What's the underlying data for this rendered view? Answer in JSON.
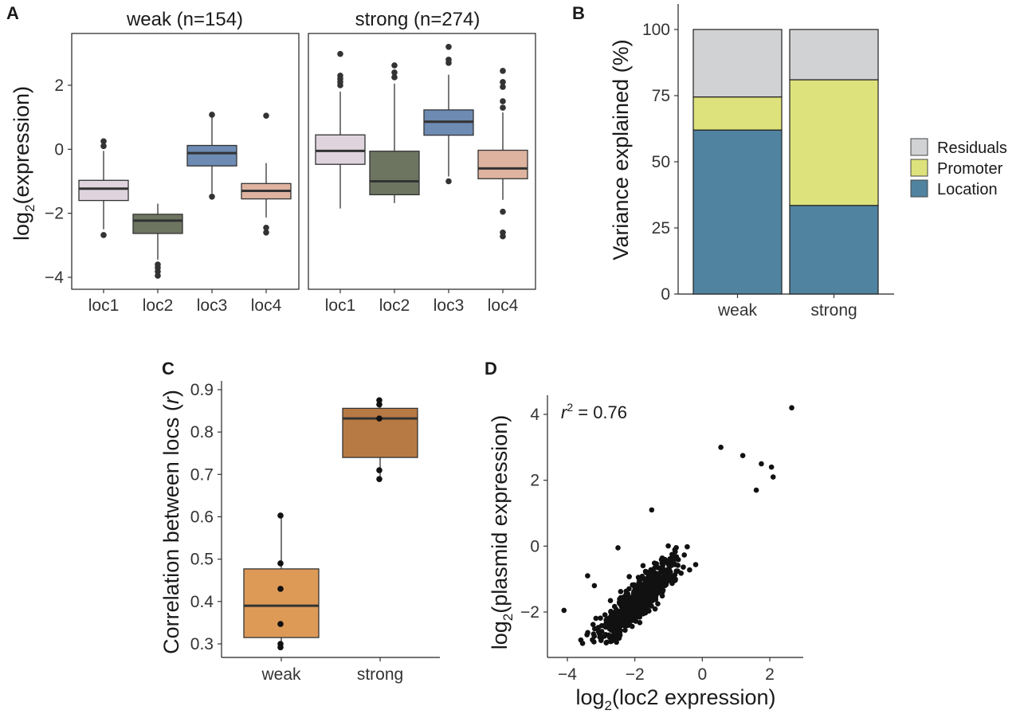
{
  "panels": {
    "A": "A",
    "B": "B",
    "C": "C",
    "D": "D"
  },
  "colors": {
    "loc1": "#dfd4dd",
    "loc2": "#6d7561",
    "loc3": "#6d8bb3",
    "loc4": "#deb3a0",
    "residuals": "#d1d2d3",
    "promoter": "#dde27c",
    "location": "#5083a0",
    "weak_box": "#dd9a57",
    "strong_box": "#b87a45",
    "points": "#111111"
  },
  "chart_data": [
    {
      "id": "A",
      "type": "boxplot",
      "ylabel_main": "log",
      "ylabel_sub": "2",
      "ylabel_tail": "(expression)",
      "ylim": [
        -4.3,
        3.6
      ],
      "yticks": [
        2,
        0,
        -2,
        -4
      ],
      "ytick_labels": [
        "2",
        "0",
        "−2",
        "−4"
      ],
      "facets": [
        {
          "title": "weak (n=154)",
          "categories": [
            "loc1",
            "loc2",
            "loc3",
            "loc4"
          ],
          "boxes": [
            {
              "q1": -1.6,
              "median": -1.23,
              "q3": -0.97,
              "wlow": -2.5,
              "whigh": -0.05,
              "outliers": [
                -2.68,
                0.1,
                0.25
              ]
            },
            {
              "q1": -2.63,
              "median": -2.23,
              "q3": -2.03,
              "wlow": -3.45,
              "whigh": -1.7,
              "outliers": [
                -3.6,
                -3.7,
                -3.82,
                -3.95
              ]
            },
            {
              "q1": -0.52,
              "median": -0.12,
              "q3": 0.12,
              "wlow": -1.38,
              "whigh": 1.05,
              "outliers": [
                -1.48,
                1.08
              ]
            },
            {
              "q1": -1.55,
              "median": -1.3,
              "q3": -1.07,
              "wlow": -2.13,
              "whigh": -0.43,
              "outliers": [
                -2.45,
                -2.6,
                1.05
              ]
            }
          ]
        },
        {
          "title": "strong (n=274)",
          "categories": [
            "loc1",
            "loc2",
            "loc3",
            "loc4"
          ],
          "boxes": [
            {
              "q1": -0.47,
              "median": -0.05,
              "q3": 0.45,
              "wlow": -1.85,
              "whigh": 1.8,
              "outliers": [
                2.0,
                2.1,
                2.2,
                2.3,
                2.98
              ]
            },
            {
              "q1": -1.42,
              "median": -1.0,
              "q3": -0.06,
              "wlow": -1.68,
              "whigh": 2.05,
              "outliers": [
                2.25,
                2.4,
                2.62
              ]
            },
            {
              "q1": 0.44,
              "median": 0.86,
              "q3": 1.23,
              "wlow": -0.85,
              "whigh": 2.33,
              "outliers": [
                -1.0,
                2.7,
                2.8,
                3.2
              ]
            },
            {
              "q1": -0.92,
              "median": -0.6,
              "q3": -0.03,
              "wlow": -1.58,
              "whigh": 1.15,
              "outliers": [
                -1.95,
                -2.6,
                -2.72,
                1.3,
                1.5,
                1.95,
                2.1,
                2.45
              ]
            }
          ]
        }
      ]
    },
    {
      "id": "B",
      "type": "bar",
      "stacked": true,
      "ylabel": "Variance explained (%)",
      "ylim": [
        0,
        110
      ],
      "yticks": [
        0,
        25,
        50,
        75,
        100
      ],
      "categories": [
        "weak",
        "strong"
      ],
      "series": [
        {
          "name": "Location",
          "values": [
            62,
            33.5
          ]
        },
        {
          "name": "Promoter",
          "values": [
            12.5,
            47.5
          ]
        },
        {
          "name": "Residuals",
          "values": [
            25.5,
            19
          ]
        }
      ],
      "legend_order": [
        "Residuals",
        "Promoter",
        "Location"
      ],
      "legend_position": "right"
    },
    {
      "id": "C",
      "type": "boxplot",
      "ylabel_main": "Correlation between locs (",
      "ylabel_italic": "r",
      "ylabel_tail": ")",
      "ylim": [
        0.28,
        0.91
      ],
      "yticks": [
        0.3,
        0.4,
        0.5,
        0.6,
        0.7,
        0.8,
        0.9
      ],
      "ytick_labels": [
        "0.3",
        "0.4",
        "0.5",
        "0.6",
        "0.7",
        "0.8",
        "0.9"
      ],
      "categories": [
        "weak",
        "strong"
      ],
      "boxes": [
        {
          "q1": 0.315,
          "median": 0.39,
          "q3": 0.477,
          "wlow": 0.295,
          "whigh": 0.603,
          "points": [
            0.603,
            0.49,
            0.43,
            0.347,
            0.3,
            0.292
          ]
        },
        {
          "q1": 0.74,
          "median": 0.832,
          "q3": 0.856,
          "wlow": 0.689,
          "whigh": 0.875,
          "points": [
            0.875,
            0.865,
            0.832,
            0.71,
            0.689
          ]
        }
      ]
    },
    {
      "id": "D",
      "type": "scatter",
      "xlabel_main": "log",
      "xlabel_sub": "2",
      "xlabel_tail": "(loc2 expression)",
      "ylabel_main": "log",
      "ylabel_sub": "2",
      "ylabel_tail": "(plasmid expression)",
      "xlim": [
        -4.4,
        3.0
      ],
      "ylim": [
        -3.05,
        4.45
      ],
      "xticks": [
        -4,
        -2,
        0,
        2
      ],
      "xtick_labels": [
        "−4",
        "−2",
        "0",
        "2"
      ],
      "yticks": [
        4,
        2,
        0,
        -2
      ],
      "ytick_labels": [
        "4",
        "2",
        "0",
        "−2"
      ],
      "annotation": {
        "prefix": "r",
        "sup": "2",
        "suffix": " = 0.76"
      },
      "points_summary": {
        "n": 700,
        "slope": 0.95,
        "intercept": 0.2,
        "x_center": -1.9,
        "x_sd": 0.95
      },
      "points": [
        [
          2.65,
          4.2
        ],
        [
          0.55,
          3.0
        ],
        [
          -4.1,
          -1.95
        ],
        [
          -3.55,
          -2.95
        ],
        [
          -3.6,
          -2.85
        ],
        [
          1.2,
          2.75
        ],
        [
          1.75,
          2.5
        ],
        [
          2.1,
          2.1
        ],
        [
          2.05,
          2.4
        ],
        [
          1.6,
          1.7
        ],
        [
          -3.0,
          -2.6
        ],
        [
          -1.5,
          1.1
        ],
        [
          -2.5,
          -0.05
        ],
        [
          -3.4,
          -0.9
        ],
        [
          -3.2,
          -1.2
        ]
      ]
    }
  ]
}
